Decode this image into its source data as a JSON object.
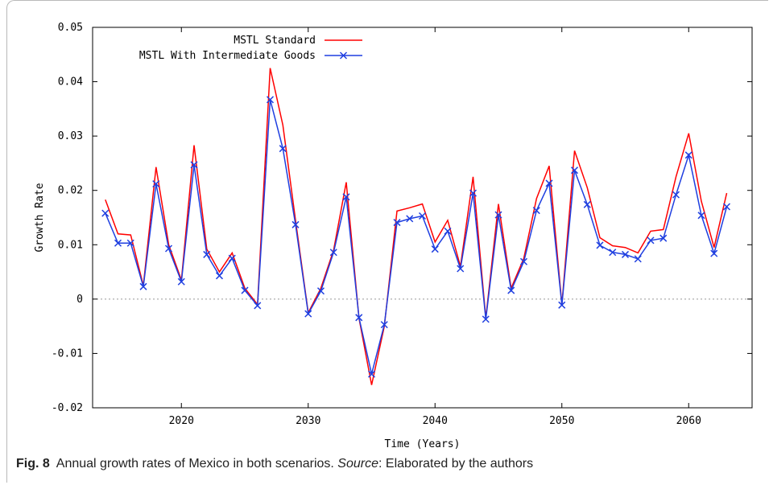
{
  "caption": {
    "label": "Fig. 8",
    "text_before": "Annual growth rates of Mexico in both scenarios. ",
    "source_word": "Source",
    "text_after": ": Elaborated by the authors"
  },
  "chart_data": {
    "type": "line",
    "xlabel": "Time (Years)",
    "ylabel": "Growth Rate",
    "xlim": [
      2013,
      2065
    ],
    "ylim": [
      -0.02,
      0.05
    ],
    "xticks": [
      2020,
      2030,
      2040,
      2050,
      2060
    ],
    "yticks": [
      -0.02,
      -0.01,
      0,
      0.01,
      0.02,
      0.03,
      0.04,
      0.05
    ],
    "ytick_labels": [
      "-0.02",
      "-0.01",
      "0",
      "0.01",
      "0.02",
      "0.03",
      "0.04",
      "0.05"
    ],
    "zero_line": true,
    "legend_position": "top-center",
    "x": [
      2014,
      2015,
      2016,
      2017,
      2018,
      2019,
      2020,
      2021,
      2022,
      2023,
      2024,
      2025,
      2026,
      2027,
      2028,
      2029,
      2030,
      2031,
      2032,
      2033,
      2034,
      2035,
      2036,
      2037,
      2038,
      2039,
      2040,
      2041,
      2042,
      2043,
      2044,
      2045,
      2046,
      2047,
      2048,
      2049,
      2050,
      2051,
      2052,
      2053,
      2054,
      2055,
      2056,
      2057,
      2058,
      2059,
      2060,
      2061,
      2062,
      2063
    ],
    "series": [
      {
        "name": "MSTL Standard",
        "color": "#ff0000",
        "marker": "none",
        "values": [
          0.0183,
          0.012,
          0.0118,
          0.0025,
          0.0243,
          0.01,
          0.0035,
          0.0283,
          0.0092,
          0.005,
          0.0085,
          0.002,
          -0.001,
          0.0425,
          0.032,
          0.0145,
          -0.0025,
          0.002,
          0.009,
          0.0215,
          -0.0035,
          -0.0158,
          -0.005,
          0.0162,
          0.0168,
          0.0175,
          0.0105,
          0.0145,
          0.006,
          0.0225,
          -0.0035,
          0.0175,
          0.002,
          0.0075,
          0.0185,
          0.0245,
          -0.001,
          0.0273,
          0.0205,
          0.0113,
          0.0098,
          0.0095,
          0.0085,
          0.0125,
          0.0128,
          0.0225,
          0.0305,
          0.018,
          0.0095,
          0.0195
        ]
      },
      {
        "name": "MSTL With Intermediate Goods",
        "color": "#1f3fe0",
        "marker": "x",
        "values": [
          0.0158,
          0.0103,
          0.0103,
          0.0023,
          0.0212,
          0.0093,
          0.0032,
          0.0247,
          0.0082,
          0.0043,
          0.0075,
          0.0016,
          -0.0012,
          0.0367,
          0.0277,
          0.0137,
          -0.0027,
          0.0015,
          0.0086,
          0.0188,
          -0.0034,
          -0.0138,
          -0.0047,
          0.0141,
          0.0148,
          0.0153,
          0.0092,
          0.0125,
          0.0056,
          0.0195,
          -0.0037,
          0.0155,
          0.0016,
          0.0069,
          0.0163,
          0.0213,
          -0.0011,
          0.0237,
          0.0174,
          0.0099,
          0.0086,
          0.0082,
          0.0074,
          0.0108,
          0.0112,
          0.0192,
          0.0265,
          0.0154,
          0.0084,
          0.017
        ]
      }
    ]
  }
}
